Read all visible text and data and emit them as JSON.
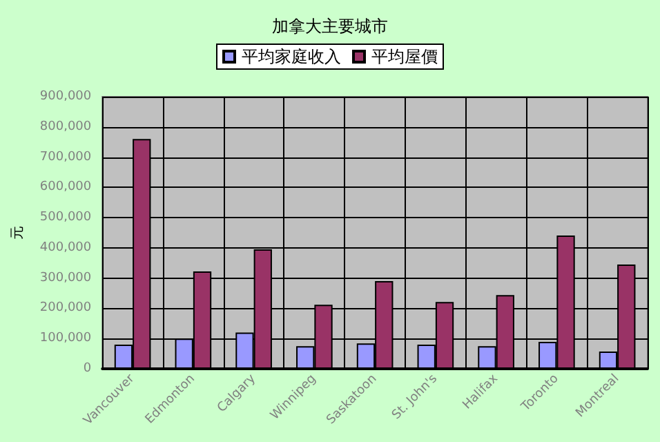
{
  "chart_data": {
    "type": "bar",
    "title": "加拿大主要城市",
    "ylabel": "元",
    "categories": [
      "Vancouver",
      "Edmonton",
      "Calgary",
      "Winnipeg",
      "Saskatoon",
      "St. John's",
      "Halifax",
      "Toronto",
      "Montreal"
    ],
    "series": [
      {
        "name": "平均家庭收入",
        "color": "#9999ff",
        "values": [
          80000,
          100000,
          120000,
          75000,
          84000,
          80000,
          75000,
          89000,
          57000
        ]
      },
      {
        "name": "平均屋價",
        "color": "#993366",
        "values": [
          760000,
          322000,
          395000,
          212000,
          290000,
          221000,
          244000,
          441000,
          345000
        ]
      }
    ],
    "ylim": [
      0,
      900000
    ],
    "yticks": [
      0,
      {
        "value": 100000,
        "label": "100,000"
      },
      {
        "value": 200000,
        "label": "200,000"
      },
      {
        "value": 300000,
        "label": "300,000"
      },
      {
        "value": 400000,
        "label": "400,000"
      },
      {
        "value": 500000,
        "label": "500,000"
      },
      {
        "value": 600000,
        "label": "600,000"
      },
      {
        "value": 700000,
        "label": "700,000"
      },
      {
        "value": 800000,
        "label": "800,000"
      },
      {
        "value": 900000,
        "label": "900,000"
      }
    ],
    "grid": "y",
    "legend": "top"
  }
}
